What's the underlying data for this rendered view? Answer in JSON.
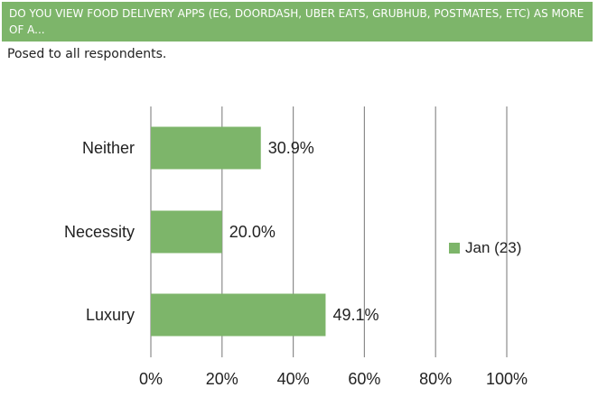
{
  "header": {
    "question": "DO YOU VIEW FOOD DELIVERY APPS (EG, DOORDASH, UBER EATS, GRUBHUB, POSTMATES, ETC) AS MORE OF A..."
  },
  "subtitle": "Posed to all respondents.",
  "colors": {
    "header_bg": "#7db56a",
    "bar": "#7db56a",
    "grid": "#8c8c8c"
  },
  "chart_data": {
    "type": "bar",
    "orientation": "horizontal",
    "title": "DO YOU VIEW FOOD DELIVERY APPS (EG, DOORDASH, UBER EATS, GRUBHUB, POSTMATES, ETC) AS MORE OF A...",
    "categories": [
      "Neither",
      "Necessity",
      "Luxury"
    ],
    "series": [
      {
        "name": "Jan (23)",
        "values": [
          30.9,
          20.0,
          49.1
        ]
      }
    ],
    "value_labels": [
      "30.9%",
      "20.0%",
      "49.1%"
    ],
    "x_ticks": [
      "0%",
      "20%",
      "40%",
      "60%",
      "80%",
      "100%"
    ],
    "xlim": [
      0,
      100
    ],
    "xlabel": "",
    "ylabel": "",
    "grid": true,
    "legend_position": "right"
  }
}
